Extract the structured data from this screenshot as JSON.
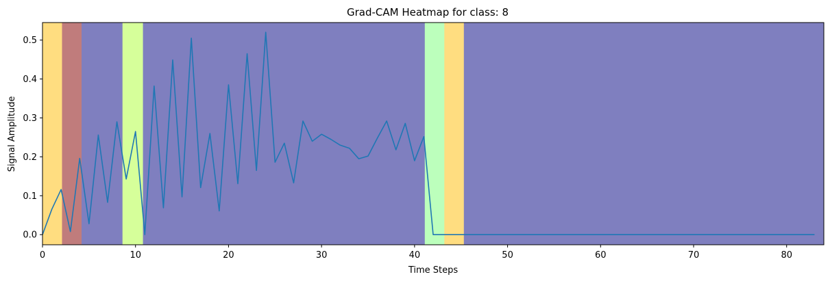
{
  "chart_data": {
    "type": "line",
    "title": "Grad-CAM Heatmap for class: 8",
    "xlabel": "Time Steps",
    "ylabel": "Signal Amplitude",
    "xlim": [
      0,
      84
    ],
    "ylim": [
      -0.026,
      0.545
    ],
    "x_ticks": [
      0,
      10,
      20,
      30,
      40,
      50,
      60,
      70,
      80
    ],
    "y_ticks": [
      0.0,
      0.1,
      0.2,
      0.3,
      0.4,
      0.5
    ],
    "y_tick_labels": [
      "0.0",
      "0.1",
      "0.2",
      "0.3",
      "0.4",
      "0.5"
    ],
    "grid": false,
    "line_color": "#1f77b4",
    "heatmap_bands": [
      {
        "x0": 0.0,
        "x1": 2.1,
        "color": "#ffdd80"
      },
      {
        "x0": 2.1,
        "x1": 4.2,
        "color": "#c07c7c"
      },
      {
        "x0": 4.2,
        "x1": 8.6,
        "color": "#7f7fbf"
      },
      {
        "x0": 8.6,
        "x1": 10.8,
        "color": "#d6ff9a"
      },
      {
        "x0": 10.8,
        "x1": 41.1,
        "color": "#7f7fbf"
      },
      {
        "x0": 41.1,
        "x1": 43.2,
        "color": "#bcffbc"
      },
      {
        "x0": 43.2,
        "x1": 45.3,
        "color": "#ffdd80"
      },
      {
        "x0": 45.3,
        "x1": 84.0,
        "color": "#7f7fbf"
      }
    ],
    "series": [
      {
        "x": [
          0,
          1,
          2,
          3,
          4,
          5,
          6,
          7,
          8,
          9,
          10,
          11,
          12,
          13,
          14,
          15,
          16,
          17,
          18,
          19,
          20,
          21,
          22,
          23,
          24,
          25,
          26,
          27,
          28,
          29,
          30,
          31,
          32,
          33,
          34,
          35,
          36,
          37,
          38,
          39,
          40,
          41,
          42,
          43,
          44,
          45,
          46,
          47,
          48,
          49,
          50,
          51,
          52,
          53,
          54,
          55,
          56,
          57,
          58,
          59,
          60,
          61,
          62,
          63,
          64,
          65,
          66,
          67,
          68,
          69,
          70,
          71,
          72,
          73,
          74,
          75,
          76,
          77,
          78,
          79,
          80,
          81,
          82,
          83
        ],
        "y": [
          0.0,
          0.065,
          0.116,
          0.008,
          0.196,
          0.028,
          0.256,
          0.083,
          0.29,
          0.143,
          0.265,
          0.0,
          0.382,
          0.069,
          0.449,
          0.097,
          0.505,
          0.121,
          0.26,
          0.061,
          0.385,
          0.131,
          0.465,
          0.165,
          0.52,
          0.186,
          0.235,
          0.133,
          0.292,
          0.24,
          0.258,
          0.245,
          0.23,
          0.222,
          0.195,
          0.202,
          0.248,
          0.292,
          0.218,
          0.286,
          0.19,
          0.252,
          0.0,
          0.0,
          0.0,
          0.0,
          0.0,
          0.0,
          0.0,
          0.0,
          0.0,
          0.0,
          0.0,
          0.0,
          0.0,
          0.0,
          0.0,
          0.0,
          0.0,
          0.0,
          0.0,
          0.0,
          0.0,
          0.0,
          0.0,
          0.0,
          0.0,
          0.0,
          0.0,
          0.0,
          0.0,
          0.0,
          0.0,
          0.0,
          0.0,
          0.0,
          0.0,
          0.0,
          0.0,
          0.0,
          0.0,
          0.0,
          0.0,
          0.0
        ]
      }
    ]
  }
}
